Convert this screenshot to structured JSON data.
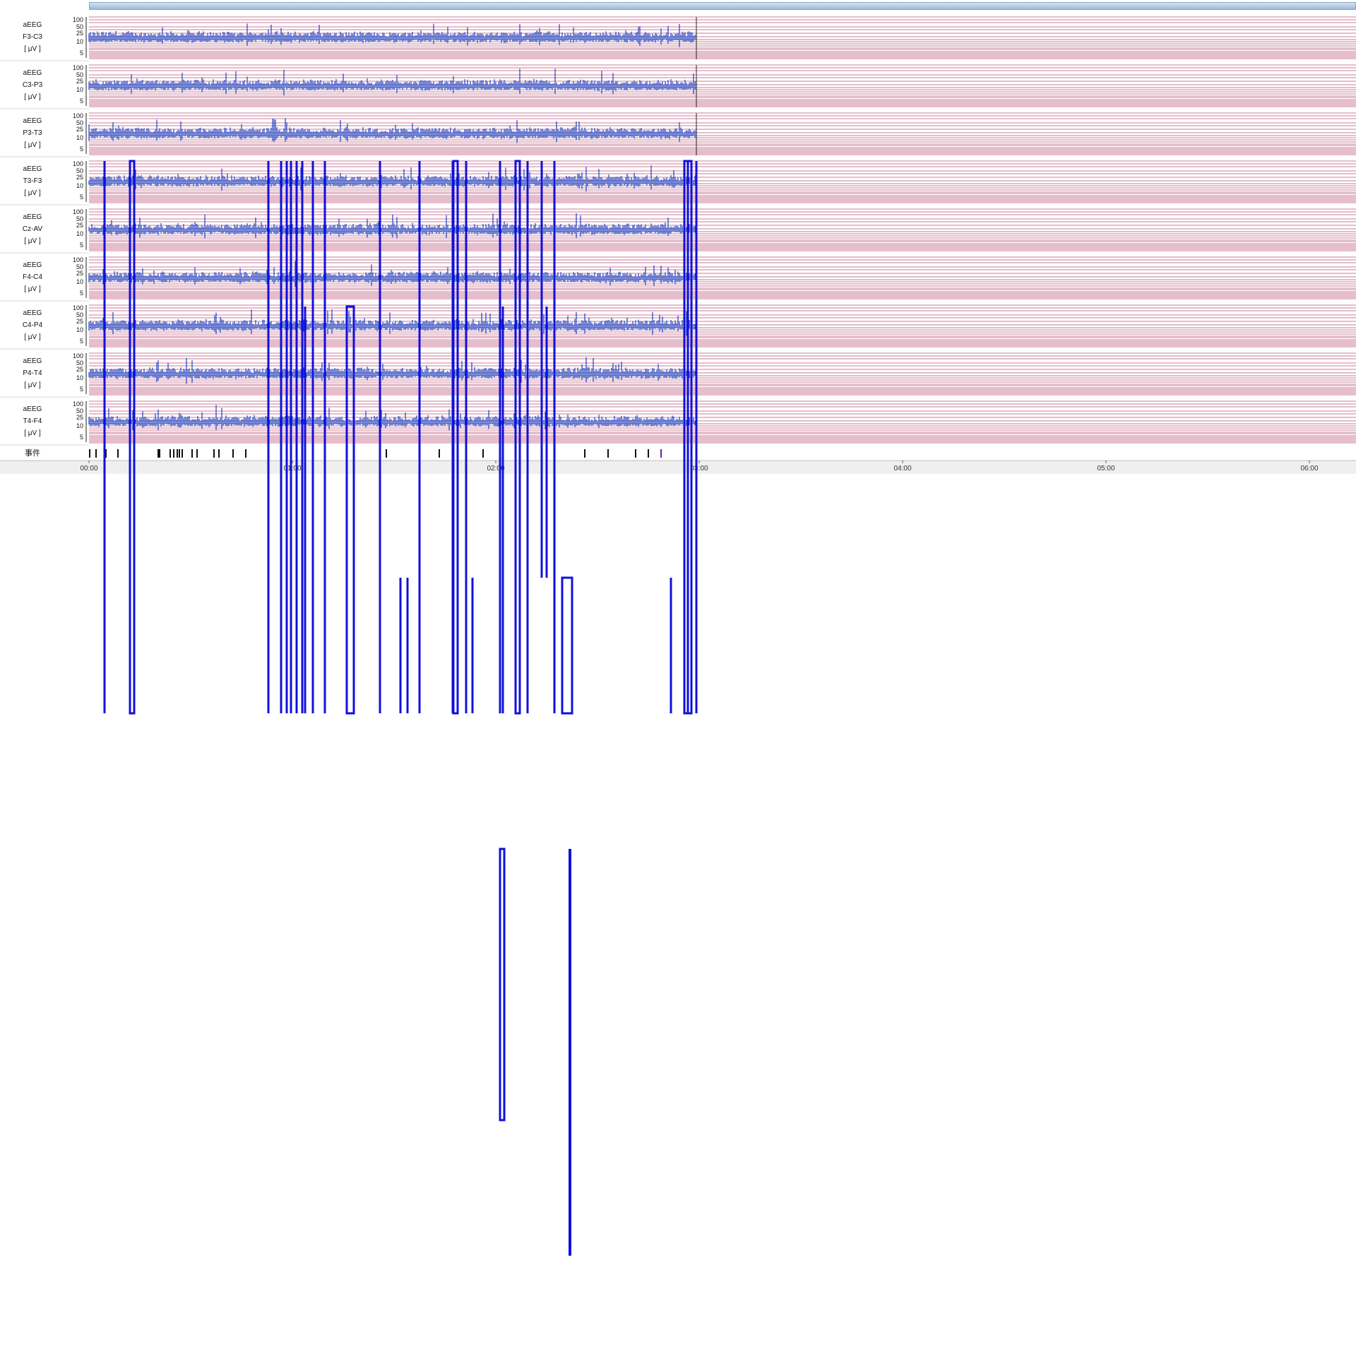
{
  "channel_kind": "aEEG",
  "unit": "[ μV ]",
  "channels": [
    "F3-C3",
    "C3-P3",
    "P3-T3",
    "T3-F3",
    "Cz-AV",
    "F4-C4",
    "C4-P4",
    "P4-T4",
    "T4-F4"
  ],
  "scale_labels": [
    "100",
    "50",
    "25",
    "10",
    "5"
  ],
  "event_label": "事件",
  "time_labels": [
    "00:00",
    "01:00",
    "02:00",
    "03:00",
    "04:00",
    "05:00",
    "06:00"
  ],
  "colors": {
    "trace": "#1b3fc2",
    "grid": "#b03060",
    "overlay": "#1010dd",
    "scrollbar": "#9db9d6"
  }
}
